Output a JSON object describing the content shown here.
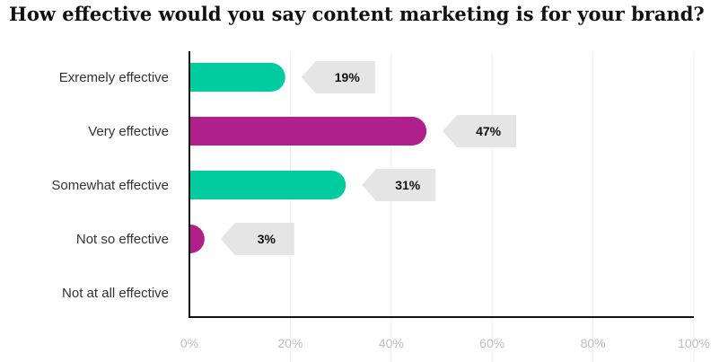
{
  "chart_data": {
    "type": "bar",
    "orientation": "horizontal",
    "title": "How effective would you say content marketing is for your brand?",
    "categories": [
      "Exremely effective",
      "Very effective",
      "Somewhat effective",
      "Not so effective",
      "Not at all effective"
    ],
    "values": [
      19,
      47,
      31,
      3,
      0
    ],
    "data_labels": [
      "19%",
      "47%",
      "31%",
      "3%",
      ""
    ],
    "xlim": [
      0,
      100
    ],
    "x_ticks": [
      0,
      20,
      40,
      60,
      80,
      100
    ],
    "x_tick_labels": [
      "0%",
      "20%",
      "40%",
      "60%",
      "80%",
      "100%"
    ],
    "grid": true,
    "colors": {
      "teal": "#00cc9f",
      "purple": "#b0208a",
      "label_bg": "#e5e5e5",
      "grid": "#eeeeee",
      "axis": "#111111"
    },
    "bar_color_order": [
      "teal",
      "purple",
      "teal",
      "purple",
      "teal"
    ]
  }
}
